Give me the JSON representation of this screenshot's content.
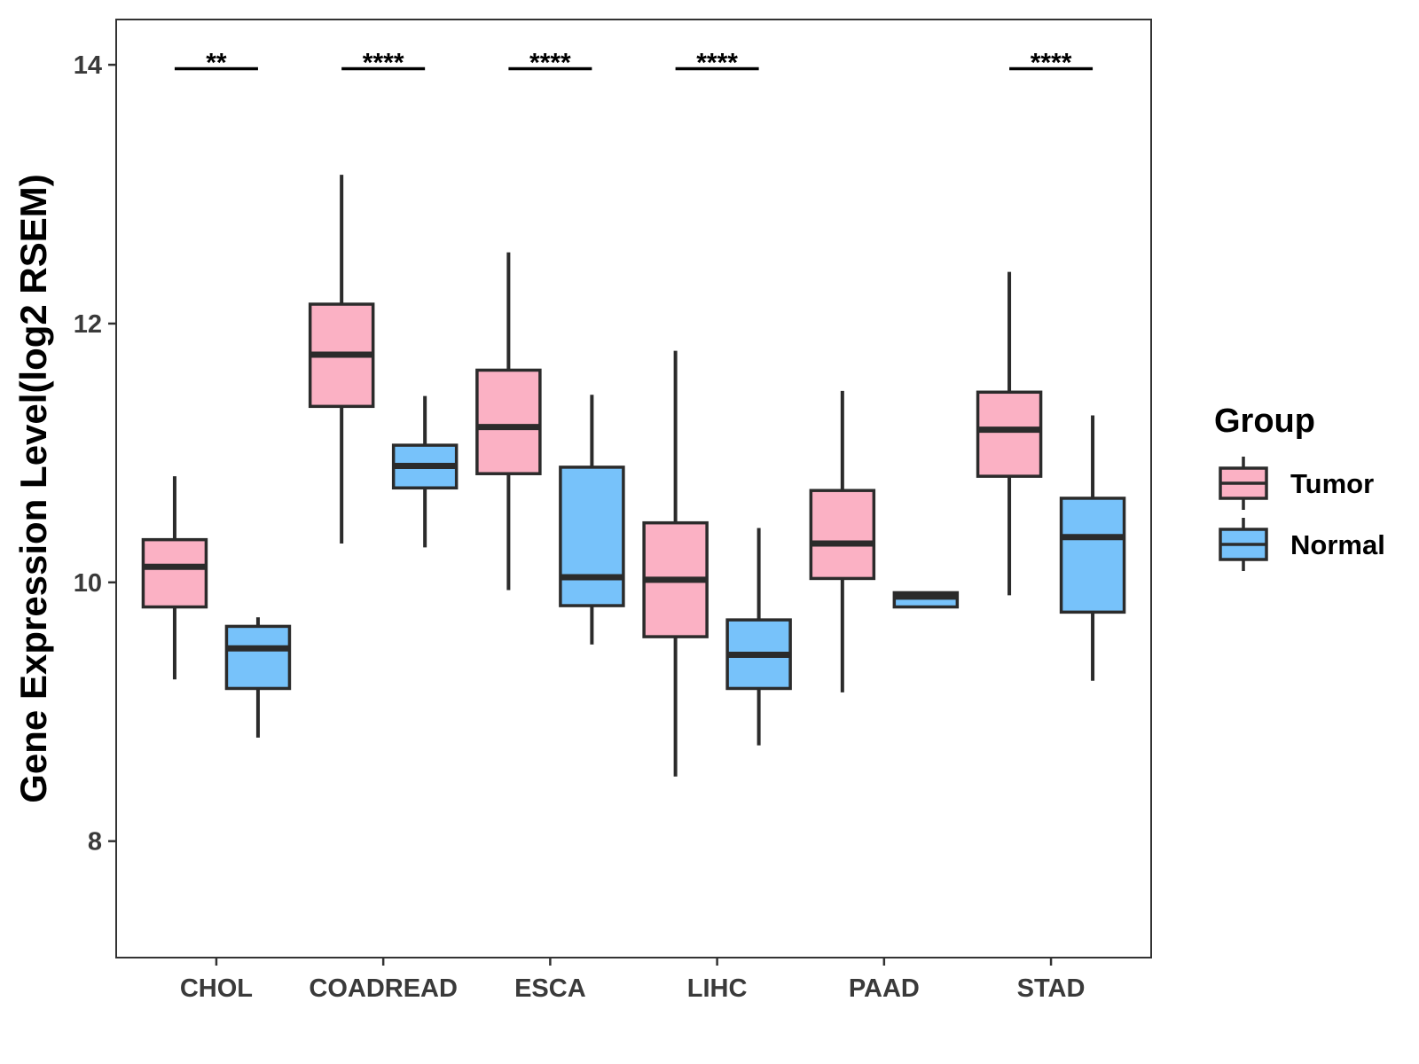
{
  "chart_data": {
    "type": "boxplot",
    "title": "",
    "xlabel": "",
    "ylabel": "Gene Expression Level(log2 RSEM)",
    "ylim": [
      7.1,
      14.35
    ],
    "yticks": [
      8,
      10,
      12,
      14
    ],
    "grid": false,
    "categories": [
      "CHOL",
      "COADREAD",
      "ESCA",
      "LIHC",
      "PAAD",
      "STAD"
    ],
    "legend": {
      "title": "Group",
      "placement": "right",
      "items": [
        {
          "name": "Tumor",
          "color": "#fbb1c4"
        },
        {
          "name": "Normal",
          "color": "#77c2fa"
        }
      ]
    },
    "series": [
      {
        "name": "Tumor",
        "color": "#fbb1c4",
        "boxes": [
          {
            "whisker_low": 9.25,
            "q1": 9.81,
            "median": 10.12,
            "q3": 10.33,
            "whisker_high": 10.82
          },
          {
            "whisker_low": 10.3,
            "q1": 11.36,
            "median": 11.76,
            "q3": 12.15,
            "whisker_high": 13.15
          },
          {
            "whisker_low": 9.94,
            "q1": 10.84,
            "median": 11.2,
            "q3": 11.64,
            "whisker_high": 12.55
          },
          {
            "whisker_low": 8.5,
            "q1": 9.58,
            "median": 10.02,
            "q3": 10.46,
            "whisker_high": 11.79
          },
          {
            "whisker_low": 9.15,
            "q1": 10.03,
            "median": 10.3,
            "q3": 10.71,
            "whisker_high": 11.48
          },
          {
            "whisker_low": 9.9,
            "q1": 10.82,
            "median": 11.18,
            "q3": 11.47,
            "whisker_high": 12.4
          }
        ]
      },
      {
        "name": "Normal",
        "color": "#77c2fa",
        "boxes": [
          {
            "whisker_low": 8.8,
            "q1": 9.18,
            "median": 9.49,
            "q3": 9.66,
            "whisker_high": 9.73
          },
          {
            "whisker_low": 10.27,
            "q1": 10.73,
            "median": 10.9,
            "q3": 11.06,
            "whisker_high": 11.44
          },
          {
            "whisker_low": 9.52,
            "q1": 9.82,
            "median": 10.04,
            "q3": 10.89,
            "whisker_high": 11.45
          },
          {
            "whisker_low": 8.74,
            "q1": 9.18,
            "median": 9.44,
            "q3": 9.71,
            "whisker_high": 10.42
          },
          {
            "whisker_low": 9.81,
            "q1": 9.81,
            "median": 9.89,
            "q3": 9.92,
            "whisker_high": 9.92
          },
          {
            "whisker_low": 9.24,
            "q1": 9.77,
            "median": 10.35,
            "q3": 10.65,
            "whisker_high": 11.29
          }
        ]
      }
    ],
    "significance": [
      {
        "category": "CHOL",
        "label": "**"
      },
      {
        "category": "COADREAD",
        "label": "****"
      },
      {
        "category": "ESCA",
        "label": "****"
      },
      {
        "category": "LIHC",
        "label": "****"
      },
      {
        "category": "PAAD",
        "label": ""
      },
      {
        "category": "STAD",
        "label": "****"
      }
    ],
    "significance_y": 13.97
  }
}
